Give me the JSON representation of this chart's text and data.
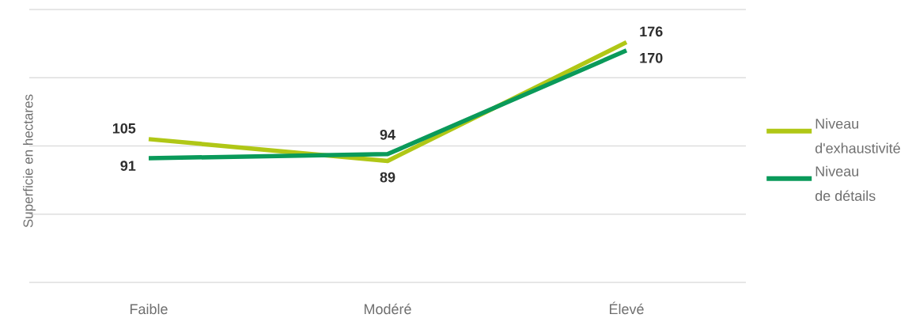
{
  "chart_data": {
    "type": "line",
    "ylabel": "Superficie en hectares",
    "categories": [
      "Faible",
      "Modéré",
      "Élevé"
    ],
    "series": [
      {
        "name": "Niveau d'exhaustivité",
        "color": "#b0c716",
        "values": [
          105,
          89,
          176
        ]
      },
      {
        "name": "Niveau de détails",
        "color": "#0a9a5a",
        "values": [
          91,
          94,
          170
        ]
      }
    ],
    "ylim": [
      0,
      200
    ],
    "yticks": [
      {
        "value": 0,
        "label": null
      },
      {
        "value": 50,
        "label": null
      },
      {
        "value": 100,
        "label": null
      },
      {
        "value": 150,
        "label": null
      },
      {
        "value": 200,
        "label": null
      }
    ],
    "tick_labels": "x",
    "grid": "y",
    "legend": "right",
    "marker": "none",
    "line_style": "solid",
    "data_labels": true
  }
}
